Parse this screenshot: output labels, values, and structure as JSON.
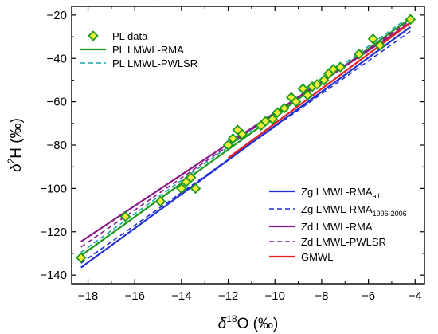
{
  "chart_data": {
    "type": "scatter",
    "xlabel": {
      "prefix": "δ",
      "sup": "18",
      "main": "O (‰)"
    },
    "ylabel": {
      "prefix": "δ",
      "sup": "2",
      "main": "H (‰)"
    },
    "xlim": [
      -18.7,
      -3.6
    ],
    "ylim": [
      -144,
      -16
    ],
    "x_ticks": [
      -18,
      -16,
      -14,
      -12,
      -10,
      -8,
      -6,
      -4
    ],
    "y_ticks": [
      -140,
      -120,
      -100,
      -80,
      -60,
      -40,
      -20
    ],
    "grid": false,
    "legend_top": [
      {
        "label": "PL data",
        "color": "#1a9a1a",
        "fill": "#f2ec3a",
        "style": "marker"
      },
      {
        "label": "PL LMWL-RMA",
        "color": "#1a9a1a",
        "style": "solid"
      },
      {
        "label": "PL LMWL-PWLSR",
        "color": "#1aa3a3",
        "style": "dashed"
      }
    ],
    "legend_bottom": [
      {
        "label": "Zg LMWL-RMA",
        "sub": "all",
        "color": "#1f2fd6",
        "style": "solid"
      },
      {
        "label": "Zg LMWL-RMA",
        "sub": "1996-2006",
        "color": "#1f2fd6",
        "style": "dashed"
      },
      {
        "label": "Zd LMWL-RMA",
        "sub": "",
        "color": "#8a1a8a",
        "style": "solid"
      },
      {
        "label": "Zd LMWL-PWLSR",
        "sub": "",
        "color": "#8a1a8a",
        "style": "dashed"
      },
      {
        "label": "GMWL",
        "sub": "",
        "color": "#e81e1e",
        "style": "solid"
      }
    ],
    "series_points": {
      "name": "PL data",
      "x": [
        -18.3,
        -16.4,
        -14.9,
        -14.0,
        -13.8,
        -13.6,
        -13.4,
        -12.0,
        -11.8,
        -11.6,
        -11.4,
        -10.6,
        -10.4,
        -10.1,
        -9.9,
        -9.6,
        -9.3,
        -9.1,
        -8.8,
        -8.6,
        -8.4,
        -8.2,
        -7.9,
        -7.7,
        -7.5,
        -7.2,
        -6.4,
        -5.8,
        -5.5,
        -4.2
      ],
      "y": [
        -132,
        -113,
        -106,
        -100,
        -97,
        -95,
        -100,
        -80,
        -77,
        -73,
        -75,
        -71,
        -69,
        -68,
        -65,
        -63,
        -58,
        -60,
        -54,
        -57,
        -53,
        -52,
        -50,
        -47,
        -45,
        -44,
        -38,
        -31,
        -34,
        -22
      ]
    },
    "series_lines": [
      {
        "name": "PL LMWL-RMA",
        "color": "#1a9a1a",
        "dash": "",
        "width": 2.2,
        "x": [
          -18.3,
          -4.2
        ],
        "y": [
          -131.0,
          -21.5
        ]
      },
      {
        "name": "PL LMWL-PWLSR",
        "color": "#1aa3a3",
        "dash": "6,4",
        "width": 1.6,
        "x": [
          -18.3,
          -4.2
        ],
        "y": [
          -129.5,
          -20.5
        ]
      },
      {
        "name": "Zg LMWL-RMA all",
        "color": "#1f2fd6",
        "dash": "",
        "width": 2.2,
        "x": [
          -18.3,
          -4.2
        ],
        "y": [
          -136.5,
          -25.5
        ]
      },
      {
        "name": "Zg LMWL-RMA 1996-2006",
        "color": "#1f2fd6",
        "dash": "6,4",
        "width": 1.6,
        "x": [
          -18.3,
          -4.2
        ],
        "y": [
          -134.5,
          -27.5
        ]
      },
      {
        "name": "Zd LMWL-RMA",
        "color": "#8a1a8a",
        "dash": "",
        "width": 2.2,
        "x": [
          -18.3,
          -4.2
        ],
        "y": [
          -124.5,
          -23.5
        ]
      },
      {
        "name": "Zd LMWL-PWLSR",
        "color": "#8a1a8a",
        "dash": "6,4",
        "width": 1.6,
        "x": [
          -18.3,
          -4.2
        ],
        "y": [
          -127.0,
          -22.5
        ]
      },
      {
        "name": "GMWL",
        "color": "#e81e1e",
        "dash": "",
        "width": 2.2,
        "x": [
          -12.0,
          -4.2
        ],
        "y": [
          -86.0,
          -23.6
        ]
      }
    ]
  }
}
